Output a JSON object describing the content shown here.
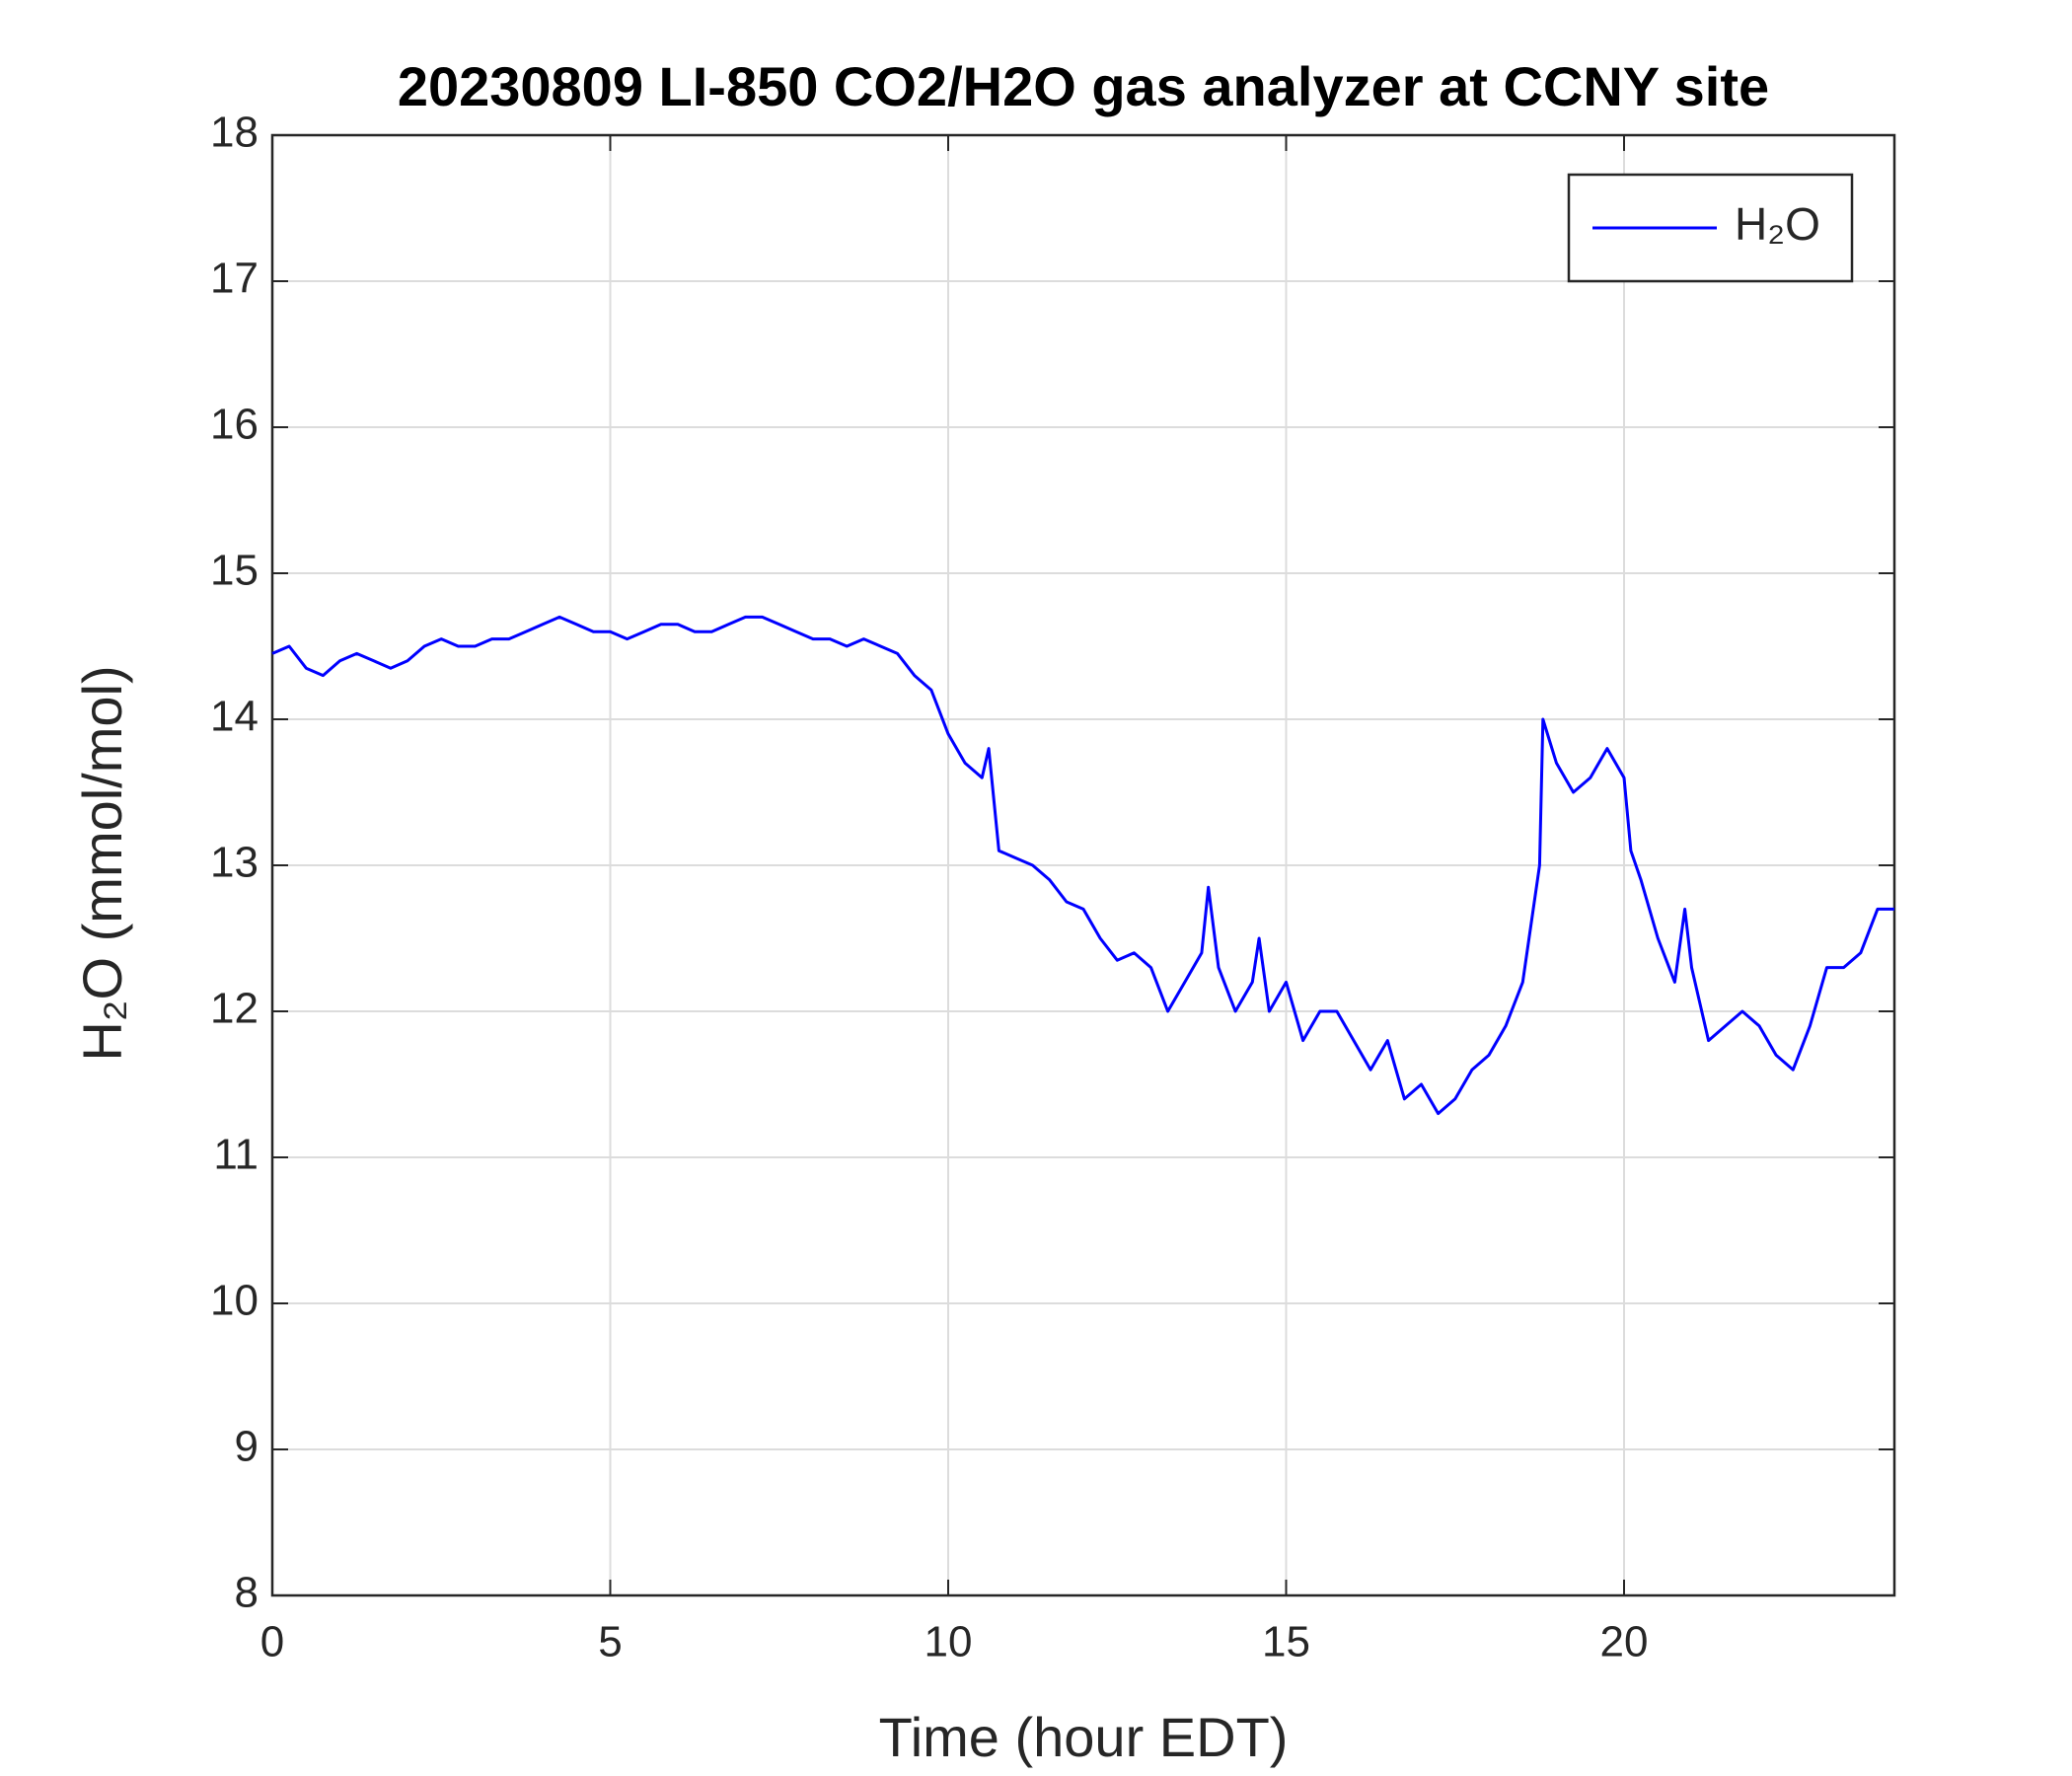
{
  "chart_data": {
    "type": "line",
    "title": "20230809 LI-850 CO2/H2O gas analyzer at CCNY site",
    "xlabel": "Time (hour EDT)",
    "ylabel": "H₂O (mmol/mol)",
    "xlim": [
      0,
      24
    ],
    "xticks": [
      0,
      5,
      10,
      15,
      20
    ],
    "ylim": [
      8,
      18
    ],
    "yticks": [
      8,
      9,
      10,
      11,
      12,
      13,
      14,
      15,
      16,
      17,
      18
    ],
    "grid": true,
    "legend": "upper right",
    "x": [
      0,
      0.25,
      0.5,
      0.75,
      1,
      1.25,
      1.5,
      1.75,
      2,
      2.25,
      2.5,
      2.75,
      3,
      3.25,
      3.5,
      3.75,
      4,
      4.25,
      4.5,
      4.75,
      5,
      5.25,
      5.5,
      5.75,
      6,
      6.25,
      6.5,
      6.75,
      7,
      7.25,
      7.5,
      7.75,
      8,
      8.25,
      8.5,
      8.75,
      9,
      9.25,
      9.5,
      9.75,
      10,
      10.25,
      10.5,
      10.6,
      10.75,
      11,
      11.25,
      11.5,
      11.75,
      12,
      12.25,
      12.5,
      12.75,
      13,
      13.25,
      13.5,
      13.75,
      13.85,
      14,
      14.25,
      14.5,
      14.6,
      14.75,
      15,
      15.25,
      15.5,
      15.75,
      16,
      16.25,
      16.5,
      16.75,
      17,
      17.25,
      17.5,
      17.75,
      18,
      18.25,
      18.5,
      18.75,
      18.8,
      19,
      19.25,
      19.5,
      19.75,
      20,
      20.1,
      20.25,
      20.5,
      20.75,
      20.9,
      21,
      21.25,
      21.5,
      21.75,
      22,
      22.25,
      22.5,
      22.75,
      23,
      23.25,
      23.5,
      23.75,
      24
    ],
    "series": [
      {
        "name": "H₂O",
        "color": "#0000ff",
        "values": [
          14.45,
          14.5,
          14.35,
          14.3,
          14.4,
          14.45,
          14.4,
          14.35,
          14.4,
          14.5,
          14.55,
          14.5,
          14.5,
          14.55,
          14.55,
          14.6,
          14.65,
          14.7,
          14.65,
          14.6,
          14.6,
          14.55,
          14.6,
          14.65,
          14.65,
          14.6,
          14.6,
          14.65,
          14.7,
          14.7,
          14.65,
          14.6,
          14.55,
          14.55,
          14.5,
          14.55,
          14.5,
          14.45,
          14.3,
          14.2,
          13.9,
          13.7,
          13.6,
          13.8,
          13.1,
          13.05,
          13.0,
          12.9,
          12.75,
          12.7,
          12.5,
          12.35,
          12.4,
          12.3,
          12.0,
          12.2,
          12.4,
          12.85,
          12.3,
          12.0,
          12.2,
          12.5,
          12.0,
          12.2,
          11.8,
          12.0,
          12.0,
          11.8,
          11.6,
          11.8,
          11.4,
          11.5,
          11.3,
          11.4,
          11.6,
          11.7,
          11.9,
          12.2,
          13.0,
          14.0,
          13.7,
          13.5,
          13.6,
          13.8,
          13.6,
          13.1,
          12.9,
          12.5,
          12.2,
          12.7,
          12.3,
          11.8,
          11.9,
          12.0,
          11.9,
          11.7,
          11.6,
          11.9,
          12.3,
          12.3,
          12.4,
          12.7,
          12.7
        ]
      }
    ]
  }
}
